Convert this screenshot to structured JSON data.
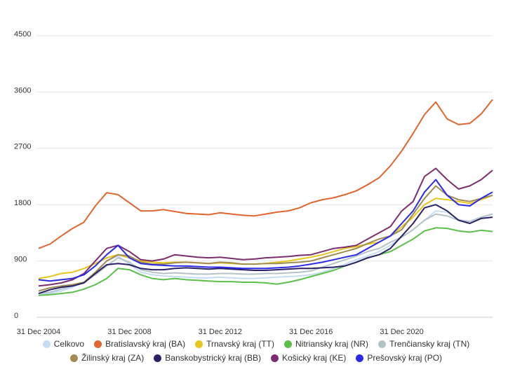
{
  "chart_data": {
    "type": "line",
    "categories": [
      "31 Dec 2004",
      null,
      null,
      null,
      null,
      null,
      null,
      null,
      "31 Dec 2008",
      null,
      null,
      null,
      null,
      null,
      null,
      null,
      "31 Dec 2012",
      null,
      null,
      null,
      null,
      null,
      null,
      null,
      "31 Dec 2016",
      null,
      null,
      null,
      null,
      null,
      null,
      null,
      "31 Dec 2020",
      null,
      null,
      null,
      null,
      null,
      null,
      null,
      null
    ],
    "ylim": [
      0,
      4500
    ],
    "yticks": [
      0,
      900,
      1800,
      2700,
      3600,
      4500
    ],
    "grid": true,
    "series": [
      {
        "name": "Celkovo",
        "color": "#c6dcf5",
        "values": [
          350,
          380,
          420,
          480,
          560,
          700,
          900,
          980,
          850,
          720,
          680,
          660,
          650,
          640,
          630,
          630,
          640,
          630,
          620,
          620,
          630,
          640,
          650,
          660,
          680,
          720,
          780,
          850,
          920,
          980,
          1050,
          1150,
          1280,
          1400,
          1550,
          1700,
          1680,
          1560,
          1530,
          1600,
          1650
        ]
      },
      {
        "name": "Bratislavský kraj (BA)",
        "color": "#e0652e",
        "values": [
          1100,
          1170,
          1300,
          1420,
          1520,
          1780,
          1990,
          1960,
          1830,
          1700,
          1700,
          1720,
          1690,
          1660,
          1650,
          1640,
          1670,
          1650,
          1630,
          1620,
          1650,
          1680,
          1700,
          1750,
          1830,
          1880,
          1910,
          1960,
          2020,
          2120,
          2230,
          2420,
          2660,
          2940,
          3240,
          3440,
          3170,
          3080,
          3100,
          3250,
          3480
        ]
      },
      {
        "name": "Trnavský kraj (TT)",
        "color": "#e8c61c",
        "values": [
          620,
          650,
          700,
          720,
          780,
          860,
          950,
          1000,
          950,
          900,
          880,
          870,
          880,
          880,
          870,
          860,
          870,
          860,
          850,
          850,
          860,
          880,
          900,
          930,
          960,
          1000,
          1050,
          1100,
          1130,
          1170,
          1200,
          1300,
          1450,
          1600,
          1800,
          1900,
          1880,
          1850,
          1820,
          1880,
          1950
        ]
      },
      {
        "name": "Nitriansky kraj (NR)",
        "color": "#5cbf4a",
        "values": [
          350,
          360,
          380,
          400,
          450,
          520,
          620,
          780,
          760,
          680,
          620,
          600,
          620,
          600,
          590,
          580,
          570,
          570,
          560,
          560,
          550,
          530,
          560,
          600,
          650,
          700,
          750,
          820,
          880,
          950,
          1000,
          1050,
          1150,
          1250,
          1380,
          1430,
          1420,
          1380,
          1360,
          1390,
          1370
        ]
      },
      {
        "name": "Trenčiansky kraj (TN)",
        "color": "#b3c4c6",
        "values": [
          380,
          400,
          450,
          500,
          560,
          680,
          820,
          950,
          880,
          760,
          720,
          700,
          710,
          700,
          690,
          690,
          700,
          700,
          690,
          690,
          700,
          700,
          710,
          720,
          740,
          800,
          860,
          920,
          980,
          1050,
          1100,
          1200,
          1280,
          1400,
          1550,
          1650,
          1620,
          1550,
          1530,
          1600,
          1650
        ]
      },
      {
        "name": "Žilinský kraj (ZA)",
        "color": "#a08c52",
        "values": [
          420,
          470,
          500,
          520,
          560,
          720,
          900,
          1000,
          980,
          880,
          850,
          850,
          870,
          880,
          870,
          860,
          880,
          870,
          850,
          850,
          860,
          860,
          870,
          880,
          900,
          950,
          1000,
          1050,
          1100,
          1180,
          1250,
          1300,
          1400,
          1650,
          1900,
          2100,
          1950,
          1880,
          1850,
          1900,
          1950
        ]
      },
      {
        "name": "Banskobystrický kraj (BB)",
        "color": "#2a2166",
        "values": [
          380,
          440,
          480,
          500,
          550,
          700,
          840,
          860,
          840,
          780,
          760,
          760,
          780,
          790,
          780,
          770,
          780,
          770,
          760,
          750,
          750,
          760,
          770,
          780,
          780,
          790,
          800,
          820,
          880,
          950,
          1000,
          1100,
          1300,
          1500,
          1750,
          1800,
          1700,
          1550,
          1500,
          1580,
          1600
        ]
      },
      {
        "name": "Košický kraj (KE)",
        "color": "#7b2d6e",
        "values": [
          500,
          520,
          550,
          600,
          700,
          900,
          1100,
          1150,
          1050,
          920,
          900,
          930,
          1000,
          980,
          960,
          950,
          960,
          940,
          920,
          930,
          950,
          960,
          970,
          990,
          1000,
          1050,
          1100,
          1120,
          1150,
          1250,
          1350,
          1450,
          1700,
          1850,
          2250,
          2380,
          2200,
          2050,
          2100,
          2200,
          2350
        ]
      },
      {
        "name": "Prešovský kraj (PO)",
        "color": "#2a2ae8",
        "values": [
          600,
          580,
          600,
          620,
          680,
          820,
          1000,
          1150,
          950,
          860,
          840,
          830,
          820,
          820,
          810,
          800,
          800,
          790,
          780,
          780,
          780,
          790,
          800,
          820,
          850,
          880,
          920,
          960,
          1000,
          1100,
          1200,
          1300,
          1500,
          1700,
          2000,
          2200,
          1950,
          1800,
          1780,
          1900,
          2000
        ]
      }
    ]
  }
}
